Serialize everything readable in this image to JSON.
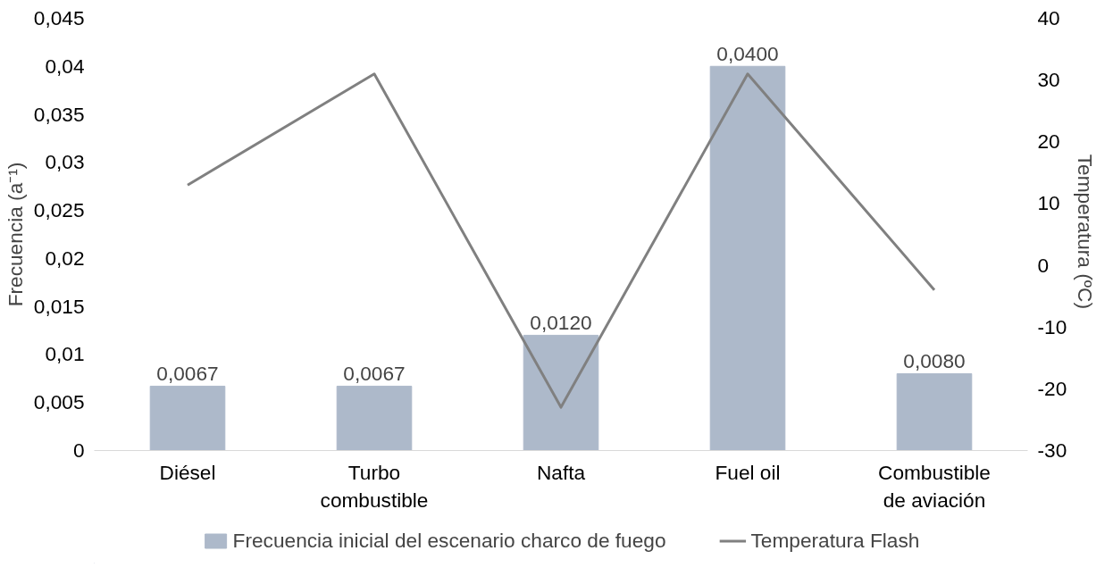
{
  "chart_data": {
    "type": "bar",
    "categories": [
      "Diésel",
      "Turbo combustible",
      "Nafta",
      "Fuel oil",
      "Combustible de aviación"
    ],
    "ylabel": "Frecuencia (a⁻¹)",
    "y2label": "Temperatura  (ºC)",
    "series": [
      {
        "name": "Frecuencia inicial del escenario charco de fuego",
        "color": "#adb9ca",
        "values": [
          0.0067,
          0.0067,
          0.012,
          0.04,
          0.008
        ],
        "value_labels": [
          "0,0067",
          "0,0067",
          "0,0120",
          "0,0400",
          "0,0080"
        ]
      },
      {
        "name": "Temperatura Flash",
        "type": "line",
        "axis": "y2",
        "color": "#808080",
        "values": [
          13,
          31,
          -23,
          31,
          -4
        ]
      }
    ],
    "ylim": [
      0,
      0.045
    ],
    "yticks": [
      0,
      {
        "value": 0.005,
        "label": "0,005"
      },
      {
        "value": 0.01,
        "label": "0,01"
      },
      {
        "value": 0.015,
        "label": "0,015"
      },
      {
        "value": 0.02,
        "label": "0,02"
      },
      {
        "value": 0.025,
        "label": "0,025"
      },
      {
        "value": 0.03,
        "label": "0,03"
      },
      {
        "value": 0.035,
        "label": "0,035"
      },
      {
        "value": 0.04,
        "label": "0,04"
      },
      {
        "value": 0.045,
        "label": "0,045"
      }
    ],
    "y2lim": [
      -30,
      40
    ],
    "y2ticks": [
      -30,
      -20,
      -10,
      0,
      10,
      20,
      30,
      40
    ],
    "legend": "bottom",
    "grid": false
  }
}
